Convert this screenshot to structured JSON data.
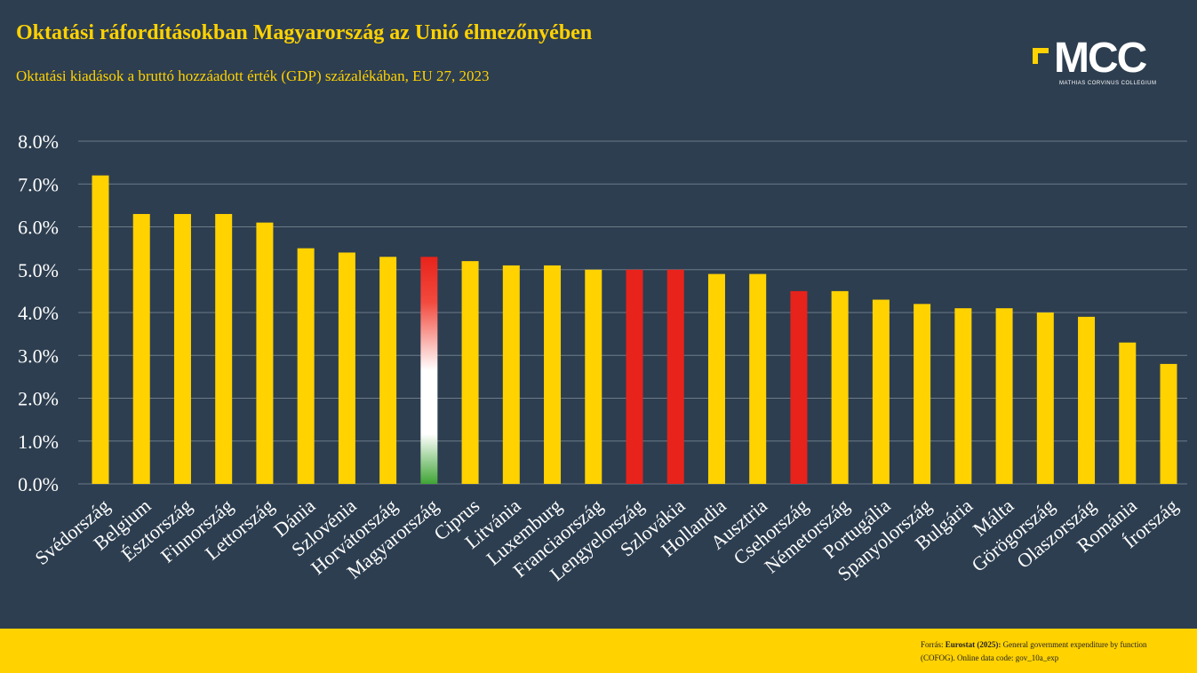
{
  "header": {
    "title": "Oktatási ráfordításokban Magyarország az Unió élmezőnyében",
    "subtitle": "Oktatási kiadások a bruttó hozzáadott érték (GDP) százalékában, EU 27, 2023"
  },
  "logo": {
    "text": "MCC",
    "subtext": "MATHIAS CORVINUS COLLEGIUM"
  },
  "footer": {
    "source_prefix": "Forrás: ",
    "source_bold": "Eurostat (2025):",
    "source_text": " General government expenditure by function (COFOG). Online data code: gov_10a_exp"
  },
  "colors": {
    "background": "#2d3e50",
    "accent_yellow": "#ffd200",
    "red": "#e8231b",
    "white": "#ffffff",
    "green": "#3fa535",
    "grid": "#6d7b89"
  },
  "chart_data": {
    "type": "bar",
    "title": "Oktatási ráfordításokban Magyarország az Unió élmezőnyében",
    "subtitle": "Oktatási kiadások a bruttó hozzáadott érték (GDP) százalékában, EU 27, 2023",
    "xlabel": "",
    "ylabel": "",
    "ylim": [
      0,
      8
    ],
    "yticks": [
      "0.0%",
      "1.0%",
      "2.0%",
      "3.0%",
      "4.0%",
      "5.0%",
      "6.0%",
      "7.0%",
      "8.0%"
    ],
    "grid": true,
    "categories": [
      "Svédország",
      "Belgium",
      "Észtország",
      "Finnország",
      "Lettország",
      "Dánia",
      "Szlovénia",
      "Horvátország",
      "Magyarország",
      "Ciprus",
      "Litvánia",
      "Luxemburg",
      "Franciaország",
      "Lengyelország",
      "Szlovákia",
      "Hollandia",
      "Ausztria",
      "Csehország",
      "Németország",
      "Portugália",
      "Spanyolország",
      "Bulgária",
      "Málta",
      "Görögország",
      "Olaszország",
      "Románia",
      "Írország"
    ],
    "values": [
      7.2,
      6.3,
      6.3,
      6.3,
      6.1,
      5.5,
      5.4,
      5.3,
      5.3,
      5.2,
      5.1,
      5.1,
      5.0,
      5.0,
      5.0,
      4.9,
      4.9,
      4.5,
      4.5,
      4.3,
      4.2,
      4.1,
      4.1,
      4.0,
      3.9,
      3.3,
      2.8
    ],
    "bar_colors": [
      "yellow",
      "yellow",
      "yellow",
      "yellow",
      "yellow",
      "yellow",
      "yellow",
      "yellow",
      "flag",
      "yellow",
      "yellow",
      "yellow",
      "yellow",
      "red",
      "red",
      "yellow",
      "yellow",
      "red",
      "yellow",
      "yellow",
      "yellow",
      "yellow",
      "yellow",
      "yellow",
      "yellow",
      "yellow",
      "yellow"
    ]
  }
}
